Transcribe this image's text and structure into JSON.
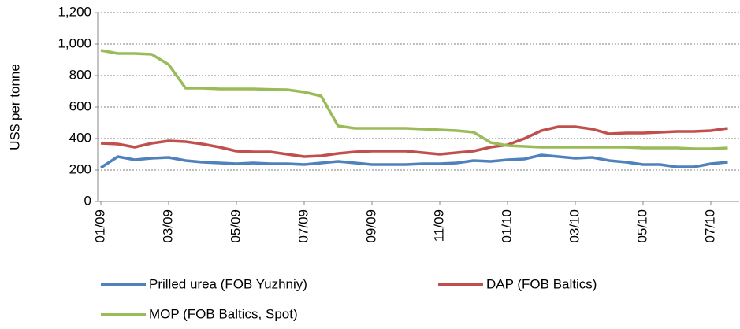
{
  "chart_data": {
    "type": "line",
    "ylabel": "US$ per tonne",
    "categories": [
      "01/09",
      null,
      null,
      null,
      "03/09",
      null,
      null,
      null,
      "05/09",
      null,
      null,
      null,
      "07/09",
      null,
      null,
      null,
      "09/09",
      null,
      null,
      null,
      "11/09",
      null,
      null,
      null,
      "01/10",
      null,
      null,
      null,
      "03/10",
      null,
      null,
      null,
      "05/10",
      null,
      null,
      null,
      "07/10",
      null
    ],
    "series": [
      {
        "name": "Prilled urea (FOB Yuzhniy)",
        "color": "#4f81bd",
        "values": [
          215,
          285,
          265,
          275,
          280,
          260,
          250,
          245,
          240,
          245,
          240,
          240,
          235,
          245,
          255,
          245,
          235,
          235,
          235,
          240,
          240,
          245,
          260,
          255,
          265,
          270,
          295,
          285,
          275,
          280,
          260,
          250,
          235,
          235,
          220,
          220,
          240,
          250
        ]
      },
      {
        "name": "DAP (FOB Baltics)",
        "color": "#c0504d",
        "values": [
          370,
          365,
          345,
          370,
          385,
          380,
          365,
          345,
          320,
          315,
          315,
          300,
          285,
          290,
          305,
          315,
          320,
          320,
          320,
          310,
          300,
          310,
          320,
          345,
          360,
          400,
          450,
          475,
          475,
          460,
          430,
          435,
          435,
          440,
          445,
          445,
          450,
          465
        ]
      },
      {
        "name": "MOP (FOB Baltics, Spot)",
        "color": "#9bbb59",
        "values": [
          960,
          940,
          940,
          935,
          870,
          720,
          720,
          715,
          715,
          715,
          712,
          710,
          695,
          670,
          480,
          465,
          465,
          465,
          465,
          460,
          455,
          450,
          440,
          375,
          355,
          350,
          345,
          345,
          345,
          345,
          345,
          345,
          340,
          340,
          340,
          335,
          335,
          340
        ]
      }
    ],
    "ylim": [
      0,
      1200
    ],
    "yticks": [
      0,
      200,
      400,
      600,
      800,
      {
        "value": 1000,
        "label": "1,000"
      },
      {
        "value": 1200,
        "label": "1,200"
      }
    ],
    "grid": true
  }
}
